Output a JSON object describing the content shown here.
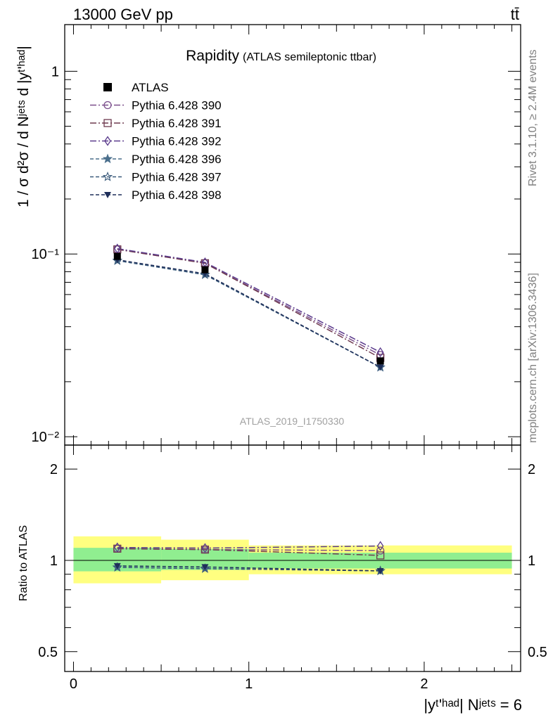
{
  "header": {
    "left": "13000 GeV pp",
    "right": "tt̄"
  },
  "side": {
    "rivet": "Rivet 3.1.10, ≥ 2.4M events",
    "mcplots": "mcplots.cern.ch [arXiv:1306.3436]"
  },
  "colors": {
    "band_yellow": "#ffff80",
    "band_green": "#90ee90",
    "data": "#000000",
    "s390": "#7b4f8c",
    "s391": "#6e3a4f",
    "s392": "#5a3a8c",
    "s396": "#4a6f8c",
    "s397": "#3a5a7b",
    "s398": "#1f2f5a"
  },
  "chart_data": {
    "type": "line",
    "title": "Rapidity",
    "subtitle": "(ATLAS semileptonic ttbar)",
    "watermark": "ATLAS_2019_I1750330",
    "ylabel_top": "1 / σ d²σ / d Nʲᵉᵗˢ d |yᵗ'ʰᵃᵈ|",
    "ylabel_ratio": "Ratio to ATLAS",
    "xlabel": "|yᵗ'ʰᵃᵈ| Nʲᵉᵗˢ = 6",
    "x_ticks": [
      "0",
      "1",
      "2"
    ],
    "y_ticks_top": [
      "1",
      "10⁻¹",
      "10⁻²"
    ],
    "y_ticks_ratio": [
      "2",
      "1",
      "0.5"
    ],
    "xlim": [
      -0.05,
      2.55
    ],
    "ylim_top": [
      0.009,
      1.8
    ],
    "yscale_top": "log",
    "ylim_ratio": [
      0.43,
      2.4
    ],
    "yscale_ratio": "log",
    "x": [
      0.25,
      0.75,
      1.75
    ],
    "bins": [
      [
        0,
        0.5
      ],
      [
        0.5,
        1.0
      ],
      [
        1.0,
        2.5
      ]
    ],
    "data": {
      "name": "ATLAS",
      "values": [
        0.097,
        0.082,
        0.026
      ],
      "band_total": [
        [
          0.84,
          1.2
        ],
        [
          0.86,
          1.17
        ],
        [
          0.9,
          1.12
        ]
      ],
      "band_stat": [
        [
          0.92,
          1.1
        ],
        [
          0.93,
          1.09
        ],
        [
          0.94,
          1.06
        ]
      ]
    },
    "series": [
      {
        "name": "Pythia 6.428 390",
        "values": [
          0.106,
          0.089,
          0.028
        ],
        "marker": "circle",
        "dash": "9,3,2,3",
        "color_key": "s390"
      },
      {
        "name": "Pythia 6.428 391",
        "values": [
          0.106,
          0.089,
          0.027
        ],
        "marker": "square",
        "dash": "9,3,2,3",
        "color_key": "s391"
      },
      {
        "name": "Pythia 6.428 392",
        "values": [
          0.107,
          0.09,
          0.029
        ],
        "marker": "diamond",
        "dash": "9,3,2,3",
        "color_key": "s392"
      },
      {
        "name": "Pythia 6.428 396",
        "values": [
          0.092,
          0.077,
          0.024
        ],
        "marker": "star",
        "dash": "5,3",
        "color_key": "s396"
      },
      {
        "name": "Pythia 6.428 397",
        "values": [
          0.092,
          0.077,
          0.024
        ],
        "marker": "star-open",
        "dash": "5,3",
        "color_key": "s397"
      },
      {
        "name": "Pythia 6.428 398",
        "values": [
          0.093,
          0.078,
          0.024
        ],
        "marker": "triangle-down",
        "dash": "5,3",
        "color_key": "s398"
      }
    ]
  }
}
